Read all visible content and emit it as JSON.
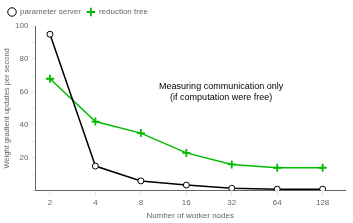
{
  "chart_data": {
    "type": "line",
    "x": [
      2,
      4,
      8,
      16,
      32,
      64,
      128
    ],
    "series": [
      {
        "name": "parameter server",
        "color": "#000000",
        "marker": "circle",
        "values": [
          95,
          15,
          6,
          3.5,
          1.5,
          1,
          1
        ]
      },
      {
        "name": "reduction tree",
        "color": "#00bb00",
        "marker": "plus",
        "values": [
          68,
          42,
          35,
          23,
          16,
          14,
          14
        ]
      }
    ],
    "xlabel": "Number of worker nodes",
    "ylabel": "Weight gradient updates per second",
    "annotation": [
      "Measuring communication only",
      "(if computation were free)"
    ],
    "log": "x",
    "xlim": [
      1.6,
      180
    ],
    "xticks": [
      2,
      4,
      8,
      16,
      32,
      64,
      128
    ],
    "ylim": [
      0,
      100
    ],
    "yticks": [
      {
        "value": 0,
        "label": ""
      },
      {
        "value": 10,
        "label": ""
      },
      20,
      {
        "value": 30,
        "label": ""
      },
      40,
      {
        "value": 50,
        "label": ""
      },
      60,
      {
        "value": 70,
        "label": ""
      },
      80,
      {
        "value": 90,
        "label": ""
      },
      100
    ],
    "grid": false,
    "legend": "upper left"
  }
}
